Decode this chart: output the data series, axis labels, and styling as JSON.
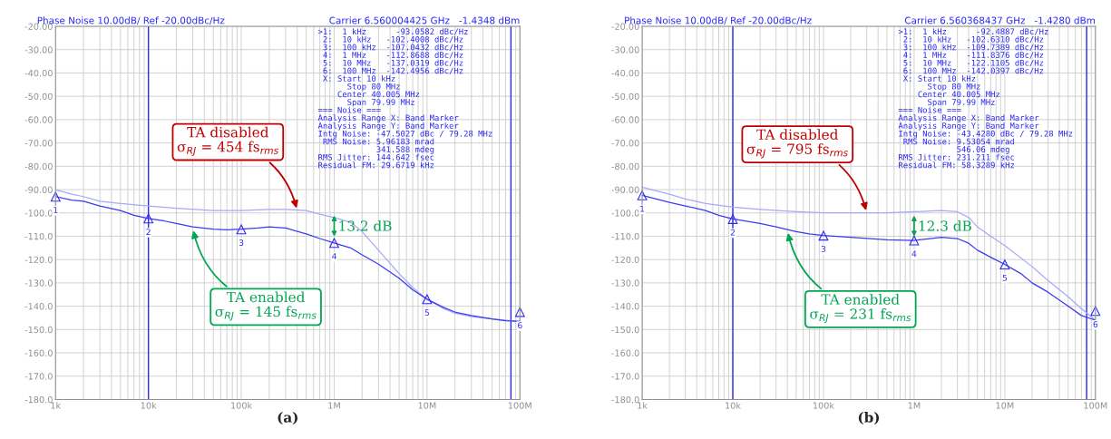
{
  "chart_data": [
    {
      "type": "line",
      "title": "Phase Noise 10.00dB/ Ref -20.00dBc/Hz",
      "subtitle": "Carrier 6.560004425 GHz   -1.4348 dBm",
      "xlabel": "(a)",
      "log": "x",
      "grid": true,
      "xlim": [
        1000,
        100000000
      ],
      "xticks": [
        {
          "value": 1000,
          "label": "1k"
        },
        {
          "value": 10000,
          "label": "10k"
        },
        {
          "value": 100000,
          "label": "100k"
        },
        {
          "value": 1000000,
          "label": "1M"
        },
        {
          "value": 10000000,
          "label": "10M"
        },
        {
          "value": 100000000,
          "label": "100M"
        }
      ],
      "ylim": [
        -180,
        -20
      ],
      "yticks": [
        {
          "value": -20,
          "label": "-20.00"
        },
        {
          "value": -30,
          "label": "-30.00"
        },
        {
          "value": -40,
          "label": "-40.00"
        },
        {
          "value": -50,
          "label": "-50.00"
        },
        {
          "value": -60,
          "label": "-60.00"
        },
        {
          "value": -70,
          "label": "-70.00"
        },
        {
          "value": -80,
          "label": "-80.00"
        },
        {
          "value": -90,
          "label": "-90.00"
        },
        {
          "value": -100,
          "label": "-100.0"
        },
        {
          "value": -110,
          "label": "-110.0"
        },
        {
          "value": -120,
          "label": "-120.0"
        },
        {
          "value": -130,
          "label": "-130.0"
        },
        {
          "value": -140,
          "label": "-140.0"
        },
        {
          "value": -150,
          "label": "-150.0"
        },
        {
          "value": -160,
          "label": "-160.0"
        },
        {
          "value": -170,
          "label": "-170.0"
        },
        {
          "value": -180,
          "label": "-180.0"
        }
      ],
      "ref_lines": [
        {
          "axis": "x",
          "value": 10000,
          "color": "#2a2af5"
        },
        {
          "axis": "x",
          "value": 80000000,
          "color": "#2a2af5"
        }
      ],
      "series": [
        {
          "color": "#a8a8f8",
          "x": [
            1000,
            1500,
            2000,
            3000,
            5000,
            10000,
            20000,
            50000,
            100000,
            200000,
            300000,
            500000,
            700000,
            1000000,
            1500000,
            2000000,
            3000000,
            5000000,
            7000000,
            10000000,
            15000000,
            20000000,
            30000000,
            50000000,
            100000000
          ],
          "values": [
            -90,
            -92,
            -93,
            -95,
            -96,
            -97,
            -98,
            -99,
            -99,
            -98.5,
            -98.5,
            -99,
            -100.5,
            -102,
            -104,
            -108,
            -116,
            -126,
            -132,
            -137,
            -141,
            -143,
            -144.5,
            -145.5,
            -146.5
          ]
        },
        {
          "color": "#3a3af0",
          "x": [
            1000,
            1500,
            2000,
            3000,
            5000,
            7000,
            10000,
            15000,
            20000,
            30000,
            50000,
            70000,
            100000,
            150000,
            200000,
            300000,
            500000,
            700000,
            1000000,
            1500000,
            2000000,
            3000000,
            5000000,
            7000000,
            10000000,
            15000000,
            20000000,
            30000000,
            50000000,
            70000000,
            100000000
          ],
          "values": [
            -93,
            -94.5,
            -95,
            -97,
            -99,
            -101,
            -102.4,
            -103.5,
            -104.5,
            -106,
            -107,
            -107.2,
            -107,
            -106.5,
            -106,
            -106.5,
            -109,
            -111,
            -112.9,
            -115,
            -118,
            -122,
            -128,
            -133,
            -137,
            -140.5,
            -142.5,
            -144,
            -145.5,
            -146.2,
            -146.5
          ]
        }
      ],
      "annotations": [
        ">1:  1 kHz      -93.0582 dBc/Hz\n 2:  10 kHz   -102.4008 dBc/Hz\n 3:  100 kHz  -107.0432 dBc/Hz\n 4:  1 MHz    -112.8688 dBc/Hz\n 5:  10 MHz   -137.0319 dBc/Hz\n 6:  100 MHz  -142.4956 dBc/Hz\n X: Start 10 kHz\n      Stop 80 MHz\n    Center 40.005 MHz\n      Span 79.99 MHz\n=== Noise ===\nAnalysis Range X: Band Marker\nAnalysis Range Y: Band Marker\nIntg Noise: -47.5027 dBc / 79.28 MHz\n RMS Noise: 5.96183 mrad\n            341.588 mdeg\nRMS Jitter: 144.642 fsec\nResidual FM: 29.6719 kHz",
        {
          "text": "TA disabled\nσ$_{RJ}$ = 454 fs$_{rms}$",
          "x": 400000,
          "y": -99
        },
        {
          "text": "TA enabled\nσ$_{RJ}$ = 145 fs$_{rms}$",
          "x": 30000,
          "y": -106.5
        },
        "13.2 dB",
        {
          "text": "1",
          "x": 1000,
          "y": -93.0582
        },
        {
          "text": "2",
          "x": 10000,
          "y": -102.4008
        },
        {
          "text": "3",
          "x": 100000,
          "y": -107.0432
        },
        {
          "text": "4",
          "x": 1000000,
          "y": -112.8688
        },
        {
          "text": "5",
          "x": 10000000,
          "y": -137.0319
        },
        {
          "text": "6",
          "x": 100000000,
          "y": -142.4956
        }
      ]
    },
    {
      "type": "line",
      "title": "Phase Noise 10.00dB/ Ref -20.00dBc/Hz",
      "subtitle": "Carrier 6.560368437 GHz   -1.4280 dBm",
      "xlabel": "(b)",
      "log": "x",
      "grid": true,
      "xlim": [
        1000,
        100000000
      ],
      "xticks": [
        {
          "value": 1000,
          "label": "1k"
        },
        {
          "value": 10000,
          "label": "10k"
        },
        {
          "value": 100000,
          "label": "100k"
        },
        {
          "value": 1000000,
          "label": "1M"
        },
        {
          "value": 10000000,
          "label": "10M"
        },
        {
          "value": 100000000,
          "label": "100M"
        }
      ],
      "ylim": [
        -180,
        -20
      ],
      "yticks": [
        {
          "value": -20,
          "label": "-20.00"
        },
        {
          "value": -30,
          "label": "-30.00"
        },
        {
          "value": -40,
          "label": "-40.00"
        },
        {
          "value": -50,
          "label": "-50.00"
        },
        {
          "value": -60,
          "label": "-60.00"
        },
        {
          "value": -70,
          "label": "-70.00"
        },
        {
          "value": -80,
          "label": "-80.00"
        },
        {
          "value": -90,
          "label": "-90.00"
        },
        {
          "value": -100,
          "label": "-100.0"
        },
        {
          "value": -110,
          "label": "-110.0"
        },
        {
          "value": -120,
          "label": "-120.0"
        },
        {
          "value": -130,
          "label": "-130.0"
        },
        {
          "value": -140,
          "label": "-140.0"
        },
        {
          "value": -150,
          "label": "-150.0"
        },
        {
          "value": -160,
          "label": "-160.0"
        },
        {
          "value": -170,
          "label": "-170.0"
        },
        {
          "value": -180,
          "label": "-180.0"
        }
      ],
      "ref_lines": [
        {
          "axis": "x",
          "value": 10000,
          "color": "#2a2af5"
        },
        {
          "axis": "x",
          "value": 80000000,
          "color": "#2a2af5"
        }
      ],
      "series": [
        {
          "color": "#a8a8f8",
          "x": [
            1000,
            2000,
            3000,
            5000,
            10000,
            20000,
            50000,
            100000,
            200000,
            500000,
            1000000,
            2000000,
            3000000,
            4000000,
            5000000,
            7000000,
            10000000,
            20000000,
            30000000,
            50000000,
            70000000,
            100000000
          ],
          "values": [
            -89,
            -92,
            -94,
            -96,
            -97.5,
            -98.5,
            -99.5,
            -100,
            -100,
            -100,
            -99.5,
            -99,
            -99.5,
            -102,
            -106,
            -110,
            -114,
            -123,
            -129,
            -136,
            -141,
            -146
          ]
        },
        {
          "color": "#3a3af0",
          "x": [
            1000,
            2000,
            3000,
            5000,
            7000,
            10000,
            20000,
            30000,
            50000,
            70000,
            100000,
            200000,
            500000,
            1000000,
            1500000,
            2000000,
            3000000,
            4000000,
            5000000,
            7000000,
            10000000,
            15000000,
            20000000,
            30000000,
            50000000,
            70000000,
            100000000
          ],
          "values": [
            -92.5,
            -95.5,
            -97,
            -99,
            -101,
            -102.6,
            -104.5,
            -106,
            -108,
            -109,
            -109.7,
            -110.5,
            -111.5,
            -111.8,
            -111,
            -110.5,
            -111,
            -113,
            -116,
            -119,
            -122.1,
            -126,
            -130,
            -134,
            -140,
            -144,
            -146
          ]
        }
      ],
      "annotations": [
        ">1:  1 kHz      -92.4887 dBc/Hz\n 2:  10 kHz   -102.6310 dBc/Hz\n 3:  100 kHz  -109.7389 dBc/Hz\n 4:  1 MHz    -111.8376 dBc/Hz\n 5:  10 MHz   -122.1105 dBc/Hz\n 6:  100 MHz  -142.0397 dBc/Hz\n X: Start 10 kHz\n      Stop 80 MHz\n    Center 40.005 MHz\n      Span 79.99 MHz\n=== Noise ===\nAnalysis Range X: Band Marker\nAnalysis Range Y: Band Marker\nIntg Noise: -43.4280 dBc / 79.28 MHz\n RMS Noise: 9.53054 mrad\n            546.06 mdeg\nRMS Jitter: 231.211 fsec\nResidual FM: 58.3289 kHz",
        {
          "text": "TA disabled\nσ$_{RJ}$ = 795 fs$_{rms}$",
          "x": 300000,
          "y": -100
        },
        {
          "text": "TA enabled\nσ$_{RJ}$ = 231 fs$_{rms}$",
          "x": 40000,
          "y": -107.5
        },
        "12.3 dB",
        {
          "text": "1",
          "x": 1000,
          "y": -92.4887
        },
        {
          "text": "2",
          "x": 10000,
          "y": -102.631
        },
        {
          "text": "3",
          "x": 100000,
          "y": -109.7389
        },
        {
          "text": "4",
          "x": 1000000,
          "y": -111.8376
        },
        {
          "text": "5",
          "x": 10000000,
          "y": -122.1105
        },
        {
          "text": "6",
          "x": 100000000,
          "y": -142.0397
        }
      ]
    }
  ]
}
